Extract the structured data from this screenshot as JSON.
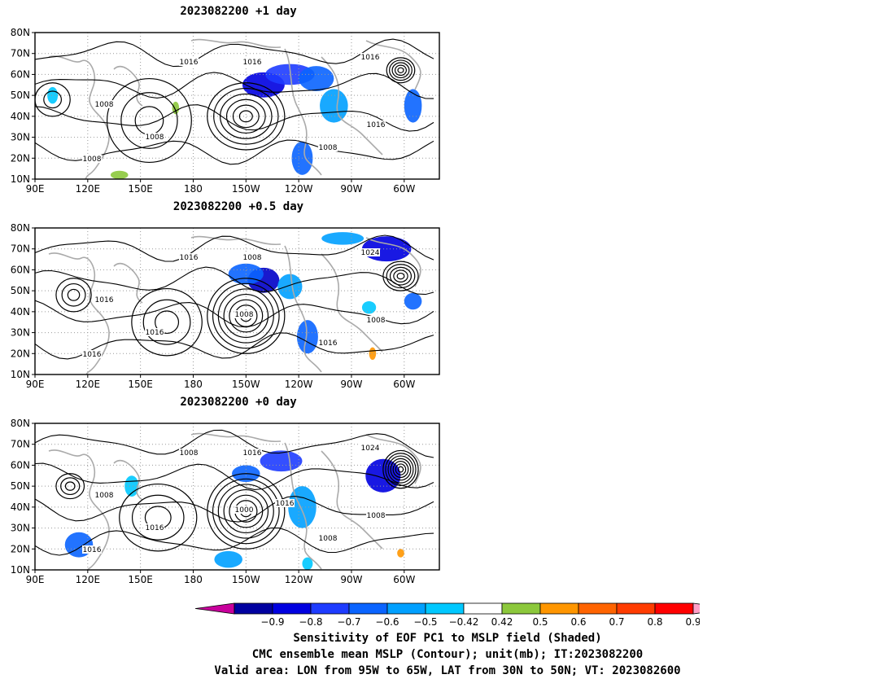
{
  "panels": [
    {
      "id": "p1",
      "title": "2023082200  +1 day",
      "contour_labels": [
        "1016",
        "1016",
        "1008",
        "1008",
        "1016",
        "1016",
        "1008",
        "1008"
      ],
      "shade_blobs": [
        {
          "lon": -140,
          "lat": 55,
          "rx": 12,
          "ry": 6,
          "c": "#0000e0"
        },
        {
          "lon": -125,
          "lat": 60,
          "rx": 14,
          "ry": 5,
          "c": "#1e3cff"
        },
        {
          "lon": -110,
          "lat": 58,
          "rx": 10,
          "ry": 6,
          "c": "#0a64ff"
        },
        {
          "lon": -100,
          "lat": 45,
          "rx": 8,
          "ry": 8,
          "c": "#00a0ff"
        },
        {
          "lon": -118,
          "lat": 20,
          "rx": 6,
          "ry": 8,
          "c": "#0a64ff"
        },
        {
          "lon": -55,
          "lat": 45,
          "rx": 5,
          "ry": 8,
          "c": "#0a64ff"
        },
        {
          "lon": 100,
          "lat": 50,
          "rx": 3,
          "ry": 4,
          "c": "#00c8ff"
        },
        {
          "lon": 138,
          "lat": 12,
          "rx": 5,
          "ry": 2,
          "c": "#8cc83c"
        },
        {
          "lon": 170,
          "lat": 44,
          "rx": 2,
          "ry": 3,
          "c": "#8cc83c"
        }
      ],
      "highs": [
        {
          "lon": -150,
          "lat": 40,
          "rx": 22,
          "ry": 16,
          "n": 6
        },
        {
          "lon": 155,
          "lat": 38,
          "rx": 24,
          "ry": 20,
          "n": 3
        }
      ],
      "lows": [
        {
          "lon": -62,
          "lat": 62,
          "rx": 8,
          "ry": 6,
          "n": 5
        },
        {
          "lon": 100,
          "lat": 48,
          "rx": 10,
          "ry": 8,
          "n": 2
        }
      ]
    },
    {
      "id": "p2",
      "title": "2023082200  +0.5 day",
      "contour_labels": [
        "1016",
        "1008",
        "1016",
        "1016",
        "1024",
        "1008",
        "1016",
        "1016",
        "1008"
      ],
      "shade_blobs": [
        {
          "lon": -140,
          "lat": 55,
          "rx": 9,
          "ry": 6,
          "c": "#0000c8"
        },
        {
          "lon": -150,
          "lat": 58,
          "rx": 10,
          "ry": 5,
          "c": "#0a64ff"
        },
        {
          "lon": -125,
          "lat": 52,
          "rx": 7,
          "ry": 6,
          "c": "#00a0ff"
        },
        {
          "lon": -115,
          "lat": 28,
          "rx": 6,
          "ry": 8,
          "c": "#0a64ff"
        },
        {
          "lon": -70,
          "lat": 70,
          "rx": 14,
          "ry": 6,
          "c": "#0000e0"
        },
        {
          "lon": -95,
          "lat": 75,
          "rx": 12,
          "ry": 3,
          "c": "#00a0ff"
        },
        {
          "lon": -55,
          "lat": 45,
          "rx": 5,
          "ry": 4,
          "c": "#0a64ff"
        },
        {
          "lon": -80,
          "lat": 42,
          "rx": 4,
          "ry": 3,
          "c": "#00c8ff"
        },
        {
          "lon": -78,
          "lat": 20,
          "rx": 2,
          "ry": 3,
          "c": "#ff9600"
        }
      ],
      "highs": [
        {
          "lon": -150,
          "lat": 38,
          "rx": 22,
          "ry": 18,
          "n": 7
        },
        {
          "lon": 165,
          "lat": 35,
          "rx": 20,
          "ry": 16,
          "n": 3
        }
      ],
      "lows": [
        {
          "lon": -62,
          "lat": 57,
          "rx": 10,
          "ry": 7,
          "n": 5
        },
        {
          "lon": 112,
          "lat": 48,
          "rx": 10,
          "ry": 8,
          "n": 3
        }
      ]
    },
    {
      "id": "p3",
      "title": "2023082200  +0 day",
      "contour_labels": [
        "1008",
        "1016",
        "1008",
        "1016",
        "1024",
        "1008",
        "1008",
        "1016",
        "1000",
        "1016"
      ],
      "shade_blobs": [
        {
          "lon": -130,
          "lat": 62,
          "rx": 12,
          "ry": 5,
          "c": "#1e3cff"
        },
        {
          "lon": -150,
          "lat": 56,
          "rx": 8,
          "ry": 4,
          "c": "#0a64ff"
        },
        {
          "lon": -72,
          "lat": 55,
          "rx": 10,
          "ry": 8,
          "c": "#0000e0"
        },
        {
          "lon": -118,
          "lat": 40,
          "rx": 8,
          "ry": 10,
          "c": "#00a0ff"
        },
        {
          "lon": 115,
          "lat": 22,
          "rx": 8,
          "ry": 6,
          "c": "#0a64ff"
        },
        {
          "lon": -160,
          "lat": 15,
          "rx": 8,
          "ry": 4,
          "c": "#00a0ff"
        },
        {
          "lon": -115,
          "lat": 13,
          "rx": 3,
          "ry": 3,
          "c": "#00c8ff"
        },
        {
          "lon": 145,
          "lat": 50,
          "rx": 4,
          "ry": 5,
          "c": "#00c8ff"
        },
        {
          "lon": -62,
          "lat": 18,
          "rx": 2,
          "ry": 2,
          "c": "#ff9600"
        }
      ],
      "highs": [
        {
          "lon": -150,
          "lat": 38,
          "rx": 22,
          "ry": 18,
          "n": 7
        },
        {
          "lon": 160,
          "lat": 35,
          "rx": 22,
          "ry": 16,
          "n": 3
        }
      ],
      "lows": [
        {
          "lon": -62,
          "lat": 58,
          "rx": 10,
          "ry": 9,
          "n": 7
        },
        {
          "lon": 110,
          "lat": 50,
          "rx": 8,
          "ry": 6,
          "n": 3
        }
      ]
    }
  ],
  "axes": {
    "lon_ticks": [
      "90E",
      "120E",
      "150E",
      "180",
      "150W",
      "120W",
      "90W",
      "60W"
    ],
    "lat_ticks": [
      "80N",
      "70N",
      "60N",
      "50N",
      "40N",
      "30N",
      "20N",
      "10N"
    ],
    "lon_range": [
      90,
      320
    ],
    "lat_range": [
      10,
      80
    ]
  },
  "colorbar": {
    "tick_labels": [
      "−0.9",
      "−0.8",
      "−0.7",
      "−0.6",
      "−0.5",
      "−0.42",
      "0.42",
      "0.5",
      "0.6",
      "0.7",
      "0.8",
      "0.9"
    ],
    "left_cap": "#c8009c",
    "right_cap": "#ffa0c8",
    "colors": [
      "#0000a0",
      "#0000e0",
      "#1e3cff",
      "#0a64ff",
      "#00a0ff",
      "#00c8ff",
      "#ffffff",
      "#8cc83c",
      "#ff9600",
      "#ff6400",
      "#ff3c00",
      "#ff0000"
    ]
  },
  "footer": {
    "line1": "Sensitivity of EOF PC1 to MSLP field (Shaded)",
    "line2": "CMC ensemble mean MSLP (Contour); unit(mb); IT:2023082200",
    "line3": "Valid area: LON from 95W to 65W, LAT from 30N to 50N; VT: 2023082600"
  }
}
